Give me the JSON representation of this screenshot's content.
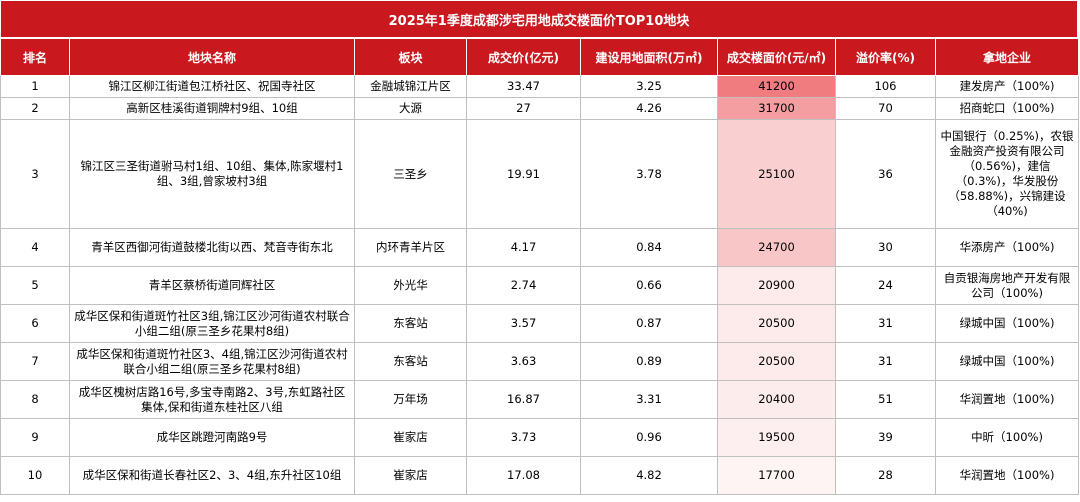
{
  "title": "2025年1季度成都涉宅用地成交楼面价TOP10地块",
  "headers": [
    "排名",
    "地块名称",
    "板块",
    "成交价(亿元)",
    "建设用地面积(万㎡)",
    "成交楼面价(元/㎡)",
    "溢价率(%)",
    "拿地企业"
  ],
  "heat_colors": {
    "41200": "#f07c80",
    "31700": "#f49ea1",
    "25100": "#f9cfd0",
    "24700": "#f8c6c7",
    "20900": "#fdeaea",
    "20500": "#fdebeb",
    "20400": "#fdecec",
    "19500": "#fdefef",
    "17700": "#fef4f4"
  },
  "rows": [
    {
      "rank": "1",
      "name": "锦江区柳江街道包江桥社区、祝国寺社区",
      "area": "金融城锦江片区",
      "price": "33.47",
      "land": "3.25",
      "floor_price": "41200",
      "premium": "106",
      "buyer": "建发房产（100%)"
    },
    {
      "rank": "2",
      "name": "高新区桂溪街道铜牌村9组、10组",
      "area": "大源",
      "price": "27",
      "land": "4.26",
      "floor_price": "31700",
      "premium": "70",
      "buyer": "招商蛇口（100%)"
    },
    {
      "rank": "3",
      "name": "锦江区三圣街道驸马村1组、10组、集体,陈家堰村1组、3组,曾家坡村3组",
      "area": "三圣乡",
      "price": "19.91",
      "land": "3.78",
      "floor_price": "25100",
      "premium": "36",
      "buyer": "中国银行（0.25%)，农银金融资产投资有限公司（0.56%)，建信（0.3%)，华发股份（58.88%)，兴锦建设（40%)"
    },
    {
      "rank": "4",
      "name": "青羊区西御河街道鼓楼北街以西、梵音寺街东北",
      "area": "内环青羊片区",
      "price": "4.17",
      "land": "0.84",
      "floor_price": "24700",
      "premium": "30",
      "buyer": "华添房产（100%)"
    },
    {
      "rank": "5",
      "name": "青羊区蔡桥街道同辉社区",
      "area": "外光华",
      "price": "2.74",
      "land": "0.66",
      "floor_price": "20900",
      "premium": "24",
      "buyer": "自贡银海房地产开发有限公司（100%)"
    },
    {
      "rank": "6",
      "name": "成华区保和街道斑竹社区3组,锦江区沙河街道农村联合小组二组(原三圣乡花果村8组)",
      "area": "东客站",
      "price": "3.57",
      "land": "0.87",
      "floor_price": "20500",
      "premium": "31",
      "buyer": "绿城中国（100%)"
    },
    {
      "rank": "7",
      "name": "成华区保和街道斑竹社区3、4组,锦江区沙河街道农村联合小组二组(原三圣乡花果村8组)",
      "area": "东客站",
      "price": "3.63",
      "land": "0.89",
      "floor_price": "20500",
      "premium": "31",
      "buyer": "绿城中国（100%)"
    },
    {
      "rank": "8",
      "name": "成华区槐树店路16号,多宝寺南路2、3号,东虹路社区集体,保和街道东桂社区八组",
      "area": "万年场",
      "price": "16.87",
      "land": "3.31",
      "floor_price": "20400",
      "premium": "51",
      "buyer": "华润置地（100%)"
    },
    {
      "rank": "9",
      "name": "成华区跳蹬河南路9号",
      "area": "崔家店",
      "price": "3.73",
      "land": "0.96",
      "floor_price": "19500",
      "premium": "39",
      "buyer": "中昕（100%)"
    },
    {
      "rank": "10",
      "name": "成华区保和街道长春社区2、3、4组,东升社区10组",
      "area": "崔家店",
      "price": "17.08",
      "land": "4.82",
      "floor_price": "17700",
      "premium": "28",
      "buyer": "华润置地（100%)"
    }
  ]
}
